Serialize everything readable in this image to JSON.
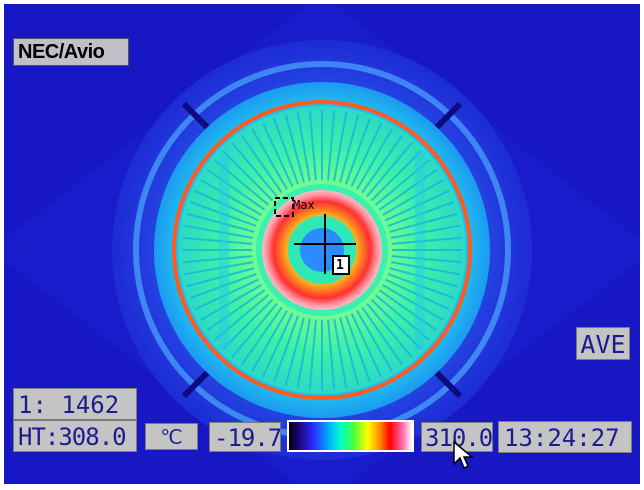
{
  "brand_label": "NEC/Avio",
  "mode_label": "AVE",
  "measurement": {
    "point_readout": "1: 1462",
    "ht_readout": "HT:308.0",
    "max_marker_label": "Max",
    "point_marker_label": "1"
  },
  "scale": {
    "unit_label": "℃",
    "min_label": "-19.7",
    "max_label": "310.0"
  },
  "clock": "13:24:27",
  "colors": {
    "background_cold": "#1a1acc",
    "ring_hot": "#e03030",
    "center_hot": "#ff8080",
    "osd_box": "#c4c4c4",
    "osd_text": "#1c1c90"
  },
  "icons": {
    "crosshair": "crosshair-icon",
    "max_marker": "max-marker-icon",
    "cursor": "mouse-pointer-icon"
  }
}
